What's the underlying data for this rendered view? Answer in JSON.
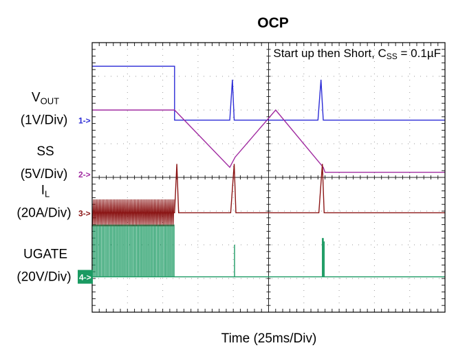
{
  "chart_data": {
    "type": "line",
    "title": "OCP",
    "annotation": {
      "main": "Start up then Short, C",
      "sub": "SS",
      "tail": " = 0.1µF"
    },
    "xlabel": "Time  (25ms/Div)",
    "grid": true,
    "divisions": {
      "x": 10,
      "y": 8
    },
    "channels": [
      {
        "id": "1",
        "name_main": "V",
        "name_sub": "OUT",
        "scale": "(1V/Div)",
        "marker": "1->",
        "color": "#2b2bd6",
        "baseline_div": 5.7,
        "points": [
          [
            0,
            7.3
          ],
          [
            4.67,
            7.3
          ],
          [
            4.67,
            5.7
          ],
          [
            7.8,
            5.7
          ],
          [
            7.95,
            6.9
          ],
          [
            8.05,
            5.7
          ],
          [
            12.8,
            5.7
          ],
          [
            12.97,
            6.9
          ],
          [
            13.1,
            5.7
          ],
          [
            20,
            5.7
          ]
        ]
      },
      {
        "id": "2",
        "name_main": "SS",
        "name_sub": "",
        "scale": "(5V/Div)",
        "marker": "2->",
        "color": "#a02aa0",
        "baseline_div": 4.1,
        "points": [
          [
            0,
            6.0
          ],
          [
            4.67,
            6.0
          ],
          [
            7.8,
            4.3
          ],
          [
            8.1,
            4.6
          ],
          [
            10.4,
            6.0
          ],
          [
            13.1,
            4.3
          ],
          [
            13.2,
            4.15
          ],
          [
            20,
            4.15
          ]
        ]
      },
      {
        "id": "3",
        "name_main": "I",
        "name_sub": "L",
        "scale": "(20A/Div)",
        "marker": "3->",
        "color": "#8b1515",
        "baseline_div": 2.95,
        "ripple": {
          "from": 0,
          "to": 4.67,
          "low": 2.55,
          "high": 3.35
        },
        "points": [
          [
            0,
            2.95
          ],
          [
            4.67,
            2.95
          ],
          [
            4.8,
            4.4
          ],
          [
            4.9,
            2.95
          ],
          [
            7.85,
            2.95
          ],
          [
            8.05,
            4.4
          ],
          [
            8.15,
            2.95
          ],
          [
            12.85,
            2.95
          ],
          [
            13.05,
            4.4
          ],
          [
            13.15,
            2.95
          ],
          [
            20,
            2.95
          ]
        ]
      },
      {
        "id": "4",
        "name_main": "UGATE",
        "name_sub": "",
        "scale": "(20V/Div)",
        "marker": "4->",
        "color": "#1a9a62",
        "baseline_div": 1.05,
        "pulses": {
          "from": 0,
          "to": 4.67,
          "high": 2.6
        },
        "spikes": [
          [
            8.07,
            2.0
          ],
          [
            13.05,
            2.2
          ],
          [
            13.1,
            2.2
          ],
          [
            13.15,
            2.1
          ]
        ],
        "points": [
          [
            0,
            1.05
          ],
          [
            20,
            1.05
          ]
        ]
      }
    ]
  }
}
